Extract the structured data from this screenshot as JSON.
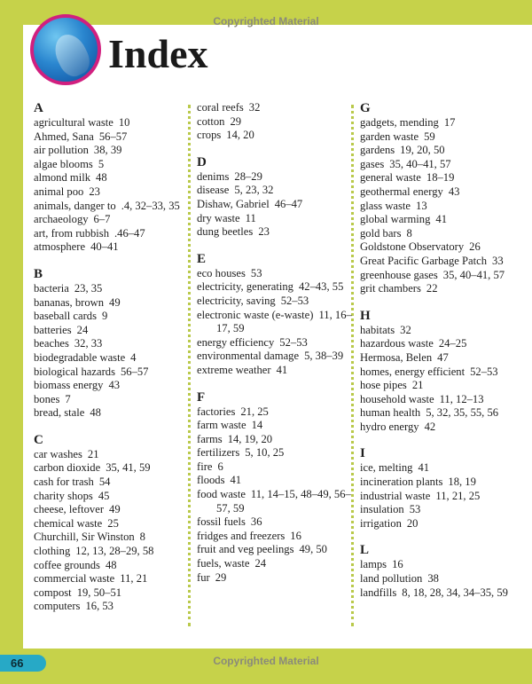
{
  "copyright_top": "Copyrighted Material",
  "copyright_bottom": "Copyrighted Material",
  "title": "Index",
  "page_number": "66",
  "colors": {
    "background": "#c6d24a",
    "logo_ring": "#d11f7f",
    "page_badge": "#27a9c6"
  },
  "logo_icon": "dolphin-photo",
  "columns": [
    [
      {
        "letter": "A",
        "entries": [
          [
            "agricultural waste",
            "10"
          ],
          [
            "Ahmed, Sana",
            "56–57"
          ],
          [
            "air pollution",
            "38, 39"
          ],
          [
            "algae blooms",
            "5"
          ],
          [
            "almond milk",
            "48"
          ],
          [
            "animal poo",
            "23"
          ],
          [
            "animals, danger to",
            ".4, 32–33, 35"
          ],
          [
            "archaeology",
            "6–7"
          ],
          [
            "art, from rubbish",
            ".46–47"
          ],
          [
            "atmosphere",
            "40–41"
          ]
        ]
      },
      {
        "letter": "B",
        "entries": [
          [
            "bacteria",
            "23, 35"
          ],
          [
            "bananas, brown",
            "49"
          ],
          [
            "baseball cards",
            "9"
          ],
          [
            "batteries",
            "24"
          ],
          [
            "beaches",
            "32, 33"
          ],
          [
            "biodegradable waste",
            "4"
          ],
          [
            "biological hazards",
            "56–57"
          ],
          [
            "biomass energy",
            "43"
          ],
          [
            "bones",
            "7"
          ],
          [
            "bread, stale",
            "48"
          ]
        ]
      },
      {
        "letter": "C",
        "entries": [
          [
            "car washes",
            "21"
          ],
          [
            "carbon dioxide",
            "35, 41, 59"
          ],
          [
            "cash for trash",
            "54"
          ],
          [
            "charity shops",
            "45"
          ],
          [
            "cheese, leftover",
            "49"
          ],
          [
            "chemical waste",
            "25"
          ],
          [
            "Churchill, Sir Winston",
            "8"
          ],
          [
            "clothing",
            "12, 13, 28–29, 58"
          ],
          [
            "coffee grounds",
            "48"
          ],
          [
            "commercial waste",
            "11, 21"
          ],
          [
            "compost",
            "19, 50–51"
          ],
          [
            "computers",
            "16, 53"
          ]
        ]
      }
    ],
    [
      {
        "letter": "",
        "entries": [
          [
            "coral reefs",
            "32"
          ],
          [
            "cotton",
            "29"
          ],
          [
            "crops",
            "14, 20"
          ]
        ]
      },
      {
        "letter": "D",
        "entries": [
          [
            "denims",
            "28–29"
          ],
          [
            "disease",
            "5, 23, 32"
          ],
          [
            "Dishaw, Gabriel",
            "46–47"
          ],
          [
            "dry waste",
            "11"
          ],
          [
            "dung beetles",
            "23"
          ]
        ]
      },
      {
        "letter": "E",
        "entries": [
          [
            "eco houses",
            "53"
          ],
          [
            "electricity, generating",
            "42–43, 55"
          ],
          [
            "electricity, saving",
            "52–53"
          ],
          [
            "electronic waste (e-waste)",
            "11, 16–17, 59"
          ],
          [
            "energy efficiency",
            "52–53"
          ],
          [
            "environmental damage",
            "5, 38–39"
          ],
          [
            "extreme weather",
            "41"
          ]
        ]
      },
      {
        "letter": "F",
        "entries": [
          [
            "factories",
            "21, 25"
          ],
          [
            "farm waste",
            "14"
          ],
          [
            "farms",
            "14, 19, 20"
          ],
          [
            "fertilizers",
            "5, 10, 25"
          ],
          [
            "fire",
            "6"
          ],
          [
            "floods",
            "41"
          ],
          [
            "food waste",
            "11, 14–15, 48–49, 56–57, 59"
          ],
          [
            "fossil fuels",
            "36"
          ],
          [
            "fridges and freezers",
            "16"
          ],
          [
            "fruit and veg peelings",
            "49, 50"
          ],
          [
            "fuels, waste",
            "24"
          ],
          [
            "fur",
            "29"
          ]
        ]
      }
    ],
    [
      {
        "letter": "G",
        "entries": [
          [
            "gadgets, mending",
            "17"
          ],
          [
            "garden waste",
            "59"
          ],
          [
            "gardens",
            "19, 20, 50"
          ],
          [
            "gases",
            "35, 40–41, 57"
          ],
          [
            "general waste",
            "18–19"
          ],
          [
            "geothermal energy",
            "43"
          ],
          [
            "glass waste",
            "13"
          ],
          [
            "global warming",
            "41"
          ],
          [
            "gold bars",
            "8"
          ],
          [
            "Goldstone Observatory",
            "26"
          ],
          [
            "Great Pacific Garbage Patch",
            "33"
          ],
          [
            "greenhouse gases",
            "35, 40–41, 57"
          ],
          [
            "grit chambers",
            "22"
          ]
        ]
      },
      {
        "letter": "H",
        "entries": [
          [
            "habitats",
            "32"
          ],
          [
            "hazardous waste",
            "24–25"
          ],
          [
            "Hermosa, Belen",
            "47"
          ],
          [
            "homes, energy efficient",
            "52–53"
          ],
          [
            "hose pipes",
            "21"
          ],
          [
            "household waste",
            "11, 12–13"
          ],
          [
            "human health",
            "5, 32, 35, 55, 56"
          ],
          [
            "hydro energy",
            "42"
          ]
        ]
      },
      {
        "letter": "I",
        "entries": [
          [
            "ice, melting",
            "41"
          ],
          [
            "incineration plants",
            "18, 19"
          ],
          [
            "industrial waste",
            "11, 21, 25"
          ],
          [
            "insulation",
            "53"
          ],
          [
            "irrigation",
            "20"
          ]
        ]
      },
      {
        "letter": "L",
        "entries": [
          [
            "lamps",
            "16"
          ],
          [
            "land pollution",
            "38"
          ],
          [
            "landfills",
            "8, 18, 28, 34, 34–35, 59"
          ]
        ]
      }
    ]
  ]
}
